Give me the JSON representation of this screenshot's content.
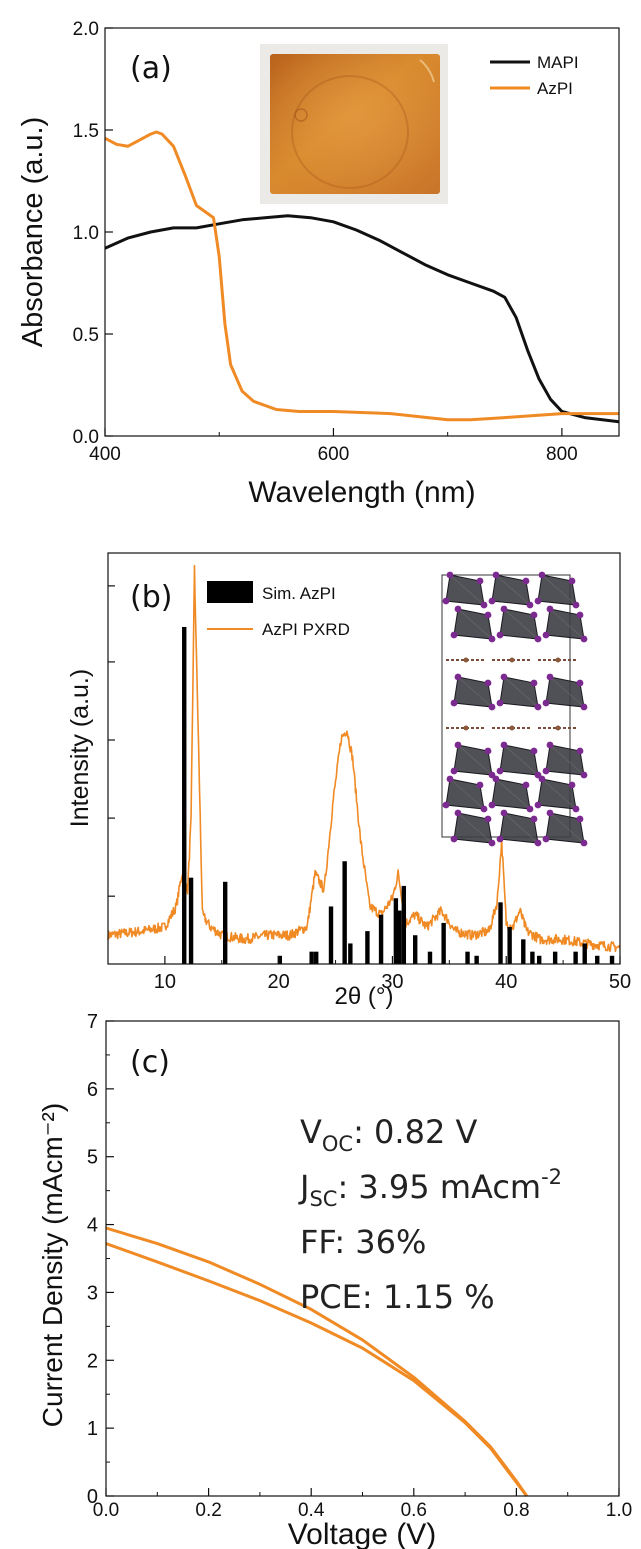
{
  "chart_data": [
    {
      "panel": "(a)",
      "type": "line",
      "xlabel": "Wavelength (nm)",
      "ylabel": "Absorbance (a.u.)",
      "xlim": [
        400,
        850
      ],
      "ylim": [
        0.0,
        2.0
      ],
      "xticks": [
        400,
        600,
        800
      ],
      "xtick_labels": [
        "400",
        "600",
        "800"
      ],
      "yticks": [
        0.0,
        0.5,
        1.0,
        1.5,
        2.0
      ],
      "ytick_labels": [
        "0.0",
        "0.5",
        "1.0",
        "1.5",
        "2.0"
      ],
      "legend_position": "top-right",
      "inset": "photo of film sample",
      "series": [
        {
          "name": "MAPI",
          "color": "#111111",
          "x": [
            400,
            420,
            440,
            460,
            480,
            500,
            520,
            540,
            560,
            580,
            600,
            620,
            640,
            660,
            680,
            700,
            720,
            740,
            750,
            760,
            770,
            780,
            790,
            800,
            820,
            850
          ],
          "y": [
            0.92,
            0.97,
            1.0,
            1.02,
            1.02,
            1.04,
            1.06,
            1.07,
            1.08,
            1.07,
            1.05,
            1.01,
            0.96,
            0.9,
            0.84,
            0.79,
            0.75,
            0.71,
            0.68,
            0.58,
            0.42,
            0.28,
            0.18,
            0.12,
            0.09,
            0.07
          ]
        },
        {
          "name": "AzPI",
          "color": "#f08a24",
          "x": [
            400,
            410,
            420,
            430,
            440,
            445,
            450,
            460,
            470,
            480,
            490,
            495,
            500,
            505,
            510,
            520,
            530,
            550,
            570,
            600,
            650,
            700,
            720,
            750,
            800,
            820,
            850
          ],
          "y": [
            1.46,
            1.43,
            1.42,
            1.45,
            1.48,
            1.49,
            1.48,
            1.42,
            1.28,
            1.13,
            1.09,
            1.07,
            0.88,
            0.55,
            0.35,
            0.22,
            0.17,
            0.13,
            0.12,
            0.12,
            0.11,
            0.08,
            0.08,
            0.09,
            0.11,
            0.11,
            0.11
          ]
        }
      ]
    },
    {
      "panel": "(b)",
      "type": "bar",
      "xlabel": "2θ (°)",
      "ylabel": "Intensity (a.u.)",
      "xlim": [
        5,
        50
      ],
      "ylim": [
        0,
        100
      ],
      "xticks": [
        10,
        20,
        30,
        40,
        50
      ],
      "xtick_labels": [
        "10",
        "20",
        "30",
        "40",
        "50"
      ],
      "legend_position": "top-left",
      "inset": "crystal structure illustration",
      "series": [
        {
          "name": "Sim. AzPI",
          "type": "bar",
          "color": "#000000",
          "x": [
            11.7,
            12.3,
            15.3,
            20.1,
            22.9,
            23.3,
            24.6,
            25.8,
            26.3,
            27.8,
            29.0,
            30.3,
            30.6,
            31.0,
            32.0,
            33.3,
            34.5,
            36.6,
            37.4,
            39.5,
            40.3,
            41.5,
            42.3,
            42.9,
            44.3,
            46.1,
            46.9,
            48.0,
            49.3
          ],
          "y": [
            82,
            21,
            20,
            2,
            3,
            3,
            14,
            25,
            5,
            8,
            12,
            16,
            13,
            19,
            7,
            3,
            10,
            3,
            2,
            15,
            9,
            6,
            3,
            2,
            3,
            3,
            5,
            2,
            2
          ]
        },
        {
          "name": "AzPI PXRD",
          "type": "line",
          "color": "#f08a24",
          "x": [
            5,
            8,
            10,
            11,
            11.5,
            12.0,
            12.3,
            12.6,
            12.9,
            13.3,
            14,
            15,
            17,
            19,
            21,
            22.5,
            23.2,
            24,
            24.8,
            25.5,
            26.0,
            26.5,
            27.2,
            28,
            29,
            30,
            30.5,
            31.2,
            32,
            33,
            34.3,
            35.5,
            37,
            38.5,
            39.2,
            39.6,
            40.0,
            40.6,
            41.2,
            41.8,
            43,
            45,
            47,
            50
          ],
          "y": [
            7,
            8,
            9,
            14,
            22,
            18,
            35,
            96,
            60,
            12,
            9,
            7,
            6,
            7,
            7,
            9,
            22,
            18,
            40,
            55,
            57,
            50,
            30,
            14,
            12,
            16,
            22,
            10,
            12,
            9,
            13,
            8,
            7,
            8,
            15,
            30,
            10,
            9,
            13,
            8,
            6,
            6,
            5,
            4
          ]
        }
      ]
    },
    {
      "panel": "(c)",
      "type": "line",
      "xlabel": "Voltage (V)",
      "ylabel": "Current Density (mAcm⁻²)",
      "xlim": [
        0.0,
        1.0
      ],
      "ylim": [
        0,
        7
      ],
      "xticks": [
        0.0,
        0.2,
        0.4,
        0.6,
        0.8,
        1.0
      ],
      "xtick_labels": [
        "0.0",
        "0.2",
        "0.4",
        "0.6",
        "0.8",
        "1.0"
      ],
      "yticks": [
        0,
        1,
        2,
        3,
        4,
        5,
        6,
        7
      ],
      "ytick_labels": [
        "0",
        "1",
        "2",
        "3",
        "4",
        "5",
        "6",
        "7"
      ],
      "annotations": [
        {
          "main": "V",
          "sub": "OC",
          "rest": ": 0.82 V"
        },
        {
          "main": "J",
          "sub": "SC",
          "rest": ": 3.95 mAcm",
          "sup": "-2"
        },
        {
          "main": "FF: 36%"
        },
        {
          "main": "PCE: 1.15 %"
        }
      ],
      "series": [
        {
          "color": "#f08a24",
          "x": [
            0.0,
            0.1,
            0.2,
            0.3,
            0.4,
            0.5,
            0.6,
            0.7,
            0.75,
            0.8,
            0.82
          ],
          "y": [
            3.95,
            3.72,
            3.45,
            3.12,
            2.75,
            2.3,
            1.75,
            1.1,
            0.72,
            0.22,
            0.0
          ]
        },
        {
          "color": "#f08a24",
          "x": [
            0.0,
            0.1,
            0.2,
            0.3,
            0.4,
            0.5,
            0.6,
            0.7,
            0.75,
            0.8,
            0.82
          ],
          "y": [
            3.72,
            3.45,
            3.17,
            2.88,
            2.55,
            2.18,
            1.7,
            1.08,
            0.7,
            0.2,
            0.0
          ]
        }
      ]
    }
  ]
}
